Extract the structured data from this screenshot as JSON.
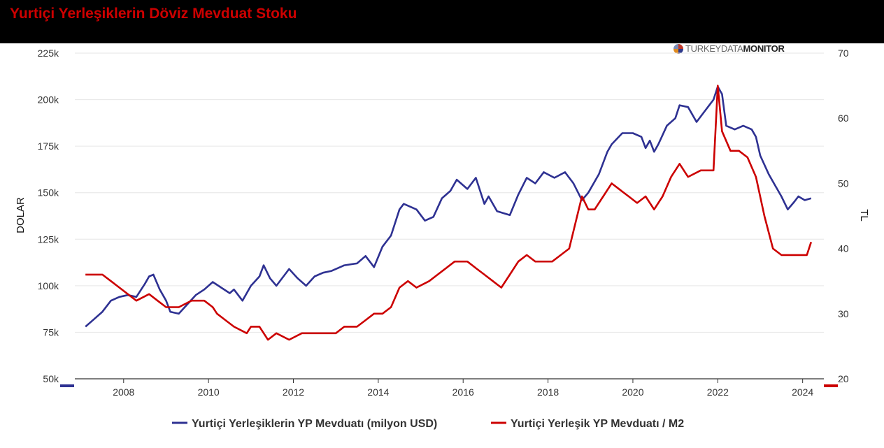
{
  "title": "Yurtiçi Yerleşiklerin Döviz Mevduat Stoku",
  "brand": {
    "part1": "TURKEYDATA",
    "part2": "MONITOR",
    "logo_icon": "turkeydatamonitor-logo-icon"
  },
  "colors": {
    "usd": "#2e3192",
    "ratio": "#cc0000",
    "grid": "#e6e6e6"
  },
  "chart_data": {
    "type": "line",
    "x_ticks": [
      "2008",
      "2010",
      "2012",
      "2014",
      "2016",
      "2018",
      "2020",
      "2022",
      "2024"
    ],
    "xlim": [
      2006.85,
      2024.5
    ],
    "left_axis": {
      "label": "DOLAR",
      "ticks": [
        "50k",
        "75k",
        "100k",
        "125k",
        "150k",
        "175k",
        "200k",
        "225k"
      ],
      "ylim": [
        50000,
        225000
      ]
    },
    "right_axis": {
      "label": "TL",
      "ticks": [
        "20",
        "30",
        "40",
        "50",
        "60",
        "70"
      ],
      "ylim": [
        20,
        70
      ]
    },
    "grid": true,
    "legend_position": "bottom-center",
    "series": [
      {
        "name": "Yurtiçi Yerleşiklerin YP Mevduatı (milyon USD)",
        "axis": "left",
        "color": "#2e3192",
        "points": [
          [
            2007.1,
            78000
          ],
          [
            2007.3,
            82000
          ],
          [
            2007.5,
            86000
          ],
          [
            2007.7,
            92000
          ],
          [
            2007.9,
            94000
          ],
          [
            2008.1,
            95000
          ],
          [
            2008.3,
            94000
          ],
          [
            2008.5,
            101000
          ],
          [
            2008.6,
            105000
          ],
          [
            2008.7,
            106000
          ],
          [
            2008.85,
            98000
          ],
          [
            2009.0,
            92000
          ],
          [
            2009.1,
            86000
          ],
          [
            2009.3,
            85000
          ],
          [
            2009.5,
            90000
          ],
          [
            2009.7,
            95000
          ],
          [
            2009.9,
            98000
          ],
          [
            2010.1,
            102000
          ],
          [
            2010.3,
            99000
          ],
          [
            2010.5,
            96000
          ],
          [
            2010.6,
            98000
          ],
          [
            2010.8,
            92000
          ],
          [
            2011.0,
            100000
          ],
          [
            2011.2,
            105000
          ],
          [
            2011.3,
            111000
          ],
          [
            2011.45,
            104000
          ],
          [
            2011.6,
            100000
          ],
          [
            2011.9,
            109000
          ],
          [
            2012.1,
            104000
          ],
          [
            2012.3,
            100000
          ],
          [
            2012.5,
            105000
          ],
          [
            2012.7,
            107000
          ],
          [
            2012.9,
            108000
          ],
          [
            2013.2,
            111000
          ],
          [
            2013.5,
            112000
          ],
          [
            2013.7,
            116000
          ],
          [
            2013.9,
            110000
          ],
          [
            2014.1,
            121000
          ],
          [
            2014.3,
            127000
          ],
          [
            2014.5,
            141000
          ],
          [
            2014.6,
            144000
          ],
          [
            2014.9,
            141000
          ],
          [
            2015.1,
            135000
          ],
          [
            2015.3,
            137000
          ],
          [
            2015.5,
            147000
          ],
          [
            2015.7,
            151000
          ],
          [
            2015.85,
            157000
          ],
          [
            2016.1,
            152000
          ],
          [
            2016.3,
            158000
          ],
          [
            2016.5,
            144000
          ],
          [
            2016.6,
            148000
          ],
          [
            2016.8,
            140000
          ],
          [
            2017.1,
            138000
          ],
          [
            2017.3,
            149000
          ],
          [
            2017.5,
            158000
          ],
          [
            2017.7,
            155000
          ],
          [
            2017.9,
            161000
          ],
          [
            2018.15,
            158000
          ],
          [
            2018.4,
            161000
          ],
          [
            2018.6,
            155000
          ],
          [
            2018.8,
            146000
          ],
          [
            2018.95,
            150000
          ],
          [
            2019.2,
            160000
          ],
          [
            2019.4,
            172000
          ],
          [
            2019.5,
            176000
          ],
          [
            2019.75,
            182000
          ],
          [
            2020.0,
            182000
          ],
          [
            2020.2,
            180000
          ],
          [
            2020.3,
            174000
          ],
          [
            2020.4,
            178000
          ],
          [
            2020.5,
            172000
          ],
          [
            2020.6,
            176000
          ],
          [
            2020.8,
            186000
          ],
          [
            2021.0,
            190000
          ],
          [
            2021.1,
            197000
          ],
          [
            2021.3,
            196000
          ],
          [
            2021.5,
            188000
          ],
          [
            2021.7,
            194000
          ],
          [
            2021.9,
            200000
          ],
          [
            2022.0,
            207000
          ],
          [
            2022.1,
            203000
          ],
          [
            2022.2,
            186000
          ],
          [
            2022.4,
            184000
          ],
          [
            2022.6,
            186000
          ],
          [
            2022.8,
            184000
          ],
          [
            2022.9,
            180000
          ],
          [
            2023.0,
            170000
          ],
          [
            2023.2,
            160000
          ],
          [
            2023.35,
            154000
          ],
          [
            2023.5,
            148000
          ],
          [
            2023.65,
            141000
          ],
          [
            2023.8,
            145000
          ],
          [
            2023.9,
            148000
          ],
          [
            2024.05,
            146000
          ],
          [
            2024.2,
            147000
          ]
        ]
      },
      {
        "name": "Yurtiçi Yerleşik YP Mevduatı / M2",
        "axis": "right",
        "color": "#cc0000",
        "points": [
          [
            2007.1,
            36
          ],
          [
            2007.5,
            36
          ],
          [
            2007.7,
            35
          ],
          [
            2007.9,
            34
          ],
          [
            2008.1,
            33
          ],
          [
            2008.3,
            32
          ],
          [
            2008.6,
            33
          ],
          [
            2008.8,
            32
          ],
          [
            2009.0,
            31
          ],
          [
            2009.3,
            31
          ],
          [
            2009.6,
            32
          ],
          [
            2009.9,
            32
          ],
          [
            2010.1,
            31
          ],
          [
            2010.2,
            30
          ],
          [
            2010.4,
            29
          ],
          [
            2010.6,
            28
          ],
          [
            2010.9,
            27
          ],
          [
            2011.0,
            28
          ],
          [
            2011.2,
            28
          ],
          [
            2011.4,
            26
          ],
          [
            2011.6,
            27
          ],
          [
            2011.9,
            26
          ],
          [
            2012.2,
            27
          ],
          [
            2012.6,
            27
          ],
          [
            2012.8,
            27
          ],
          [
            2013.0,
            27
          ],
          [
            2013.2,
            28
          ],
          [
            2013.5,
            28
          ],
          [
            2013.7,
            29
          ],
          [
            2013.9,
            30
          ],
          [
            2014.1,
            30
          ],
          [
            2014.3,
            31
          ],
          [
            2014.5,
            34
          ],
          [
            2014.7,
            35
          ],
          [
            2014.9,
            34
          ],
          [
            2015.2,
            35
          ],
          [
            2015.4,
            36
          ],
          [
            2015.6,
            37
          ],
          [
            2015.8,
            38
          ],
          [
            2016.1,
            38
          ],
          [
            2016.3,
            37
          ],
          [
            2016.5,
            36
          ],
          [
            2016.7,
            35
          ],
          [
            2016.9,
            34
          ],
          [
            2017.1,
            36
          ],
          [
            2017.3,
            38
          ],
          [
            2017.5,
            39
          ],
          [
            2017.7,
            38
          ],
          [
            2017.9,
            38
          ],
          [
            2018.1,
            38
          ],
          [
            2018.3,
            39
          ],
          [
            2018.5,
            40
          ],
          [
            2018.65,
            44
          ],
          [
            2018.8,
            48
          ],
          [
            2018.95,
            46
          ],
          [
            2019.1,
            46
          ],
          [
            2019.3,
            48
          ],
          [
            2019.5,
            50
          ],
          [
            2019.7,
            49
          ],
          [
            2019.9,
            48
          ],
          [
            2020.1,
            47
          ],
          [
            2020.3,
            48
          ],
          [
            2020.5,
            46
          ],
          [
            2020.7,
            48
          ],
          [
            2020.9,
            51
          ],
          [
            2021.1,
            53
          ],
          [
            2021.3,
            51
          ],
          [
            2021.6,
            52
          ],
          [
            2021.9,
            52
          ],
          [
            2022.0,
            65
          ],
          [
            2022.1,
            58
          ],
          [
            2022.3,
            55
          ],
          [
            2022.5,
            55
          ],
          [
            2022.7,
            54
          ],
          [
            2022.9,
            51
          ],
          [
            2023.1,
            45
          ],
          [
            2023.3,
            40
          ],
          [
            2023.5,
            39
          ],
          [
            2023.7,
            39
          ],
          [
            2023.9,
            39
          ],
          [
            2024.1,
            39
          ],
          [
            2024.2,
            41
          ]
        ]
      }
    ]
  }
}
